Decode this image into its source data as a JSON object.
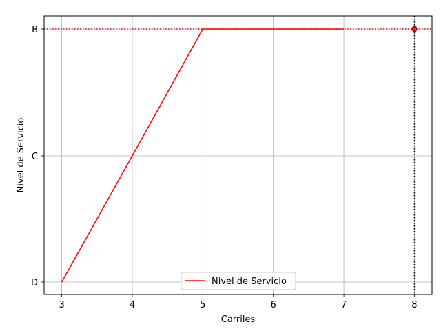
{
  "chart_data": {
    "type": "line",
    "xlabel": "Carriles",
    "ylabel": "Nivel de Servicio",
    "xlim": [
      2.75,
      8.25
    ],
    "x_ticks": [
      3,
      4,
      5,
      6,
      7,
      8
    ],
    "y_categories": [
      "D",
      "C",
      "B"
    ],
    "grid": true,
    "legend_position": "lower-center",
    "series": [
      {
        "name": "Nivel de Servicio",
        "color": "#ff0000",
        "x": [
          3,
          4,
          5,
          6,
          7
        ],
        "y": [
          "D",
          "C",
          "B",
          "B",
          "B"
        ]
      }
    ],
    "marker": {
      "x": 8,
      "y": "B",
      "color": "#ff0000"
    },
    "reference_lines": [
      {
        "orientation": "horizontal",
        "value": "B",
        "color": "#ff0000",
        "style": "dotted"
      },
      {
        "orientation": "vertical",
        "value": 8,
        "color": "#000000",
        "style": "dotted"
      }
    ]
  }
}
